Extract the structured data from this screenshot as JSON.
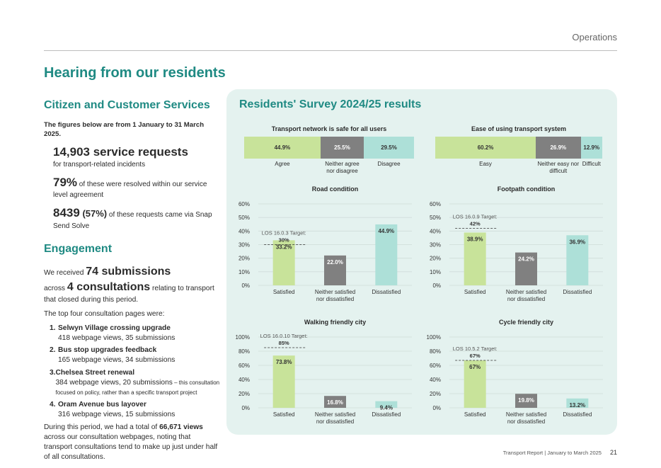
{
  "header": {
    "section": "Operations"
  },
  "page_title": "Hearing from our residents",
  "ccs": {
    "title": "Citizen and Customer Services",
    "intro": "The figures below are from 1 January to 31 March 2025.",
    "stat1_big": "14,903 service requests",
    "stat1_sub": "for transport-related incidents",
    "stat2_big": "79%",
    "stat2_sub": " of these were resolved within our service level agreement",
    "stat3_big": "8439",
    "stat3_mid": " (57%)",
    "stat3_sub": " of these requests came via Snap Send Solve"
  },
  "engagement": {
    "title": "Engagement",
    "line1_pre": "We received ",
    "line1_big": "74 submissions",
    "line2_pre": "across ",
    "line2_big": "4 consultations",
    "line2_post": " relating to transport that closed during this period.",
    "top_intro": "The top four consultation pages were:",
    "pages": [
      {
        "num": "1.",
        "name": "Selwyn Village crossing upgrade",
        "detail": "418 webpage views, 35 submissions",
        "note": ""
      },
      {
        "num": "2.",
        "name": "Bus stop upgrades feedback",
        "detail": "165 webpage views, 34 submissions",
        "note": ""
      },
      {
        "num": "3.",
        "name": "Chelsea Street renewal",
        "detail": "384 webpage views, 20 submissions",
        "note": " – this consultation focused on policy, rather than a specific transport project"
      },
      {
        "num": "4.",
        "name": "Oram Avenue bus layover",
        "detail": "316 webpage views, 15 submissions",
        "note": ""
      }
    ],
    "total_pre": "During this period, we had a total of ",
    "total_big": "66,671 views",
    "total_post": " across our consultation webpages, noting that transport consultations tend to make up just under half of all consultations."
  },
  "survey": {
    "title": "Residents' Survey 2024/25 results",
    "colors": {
      "green": "#c8e39a",
      "grey": "#808080",
      "teal": "#ade0d8"
    },
    "stacked": [
      {
        "title": "Transport network is safe for all users",
        "segments": [
          {
            "value": 44.9,
            "label": "44.9%",
            "cat": "Agree",
            "color": "green"
          },
          {
            "value": 25.5,
            "label": "25.5%",
            "cat": "Neither agree nor disagree",
            "color": "grey"
          },
          {
            "value": 29.5,
            "label": "29.5%",
            "cat": "Disagree",
            "color": "teal"
          }
        ]
      },
      {
        "title": "Ease of using transport system",
        "segments": [
          {
            "value": 60.2,
            "label": "60.2%",
            "cat": "Easy",
            "color": "green"
          },
          {
            "value": 26.9,
            "label": "26.9%",
            "cat": "Neither easy nor difficult",
            "color": "grey"
          },
          {
            "value": 12.9,
            "label": "12.9%",
            "cat": "Difficult",
            "color": "teal"
          }
        ]
      }
    ]
  },
  "chart_data": [
    {
      "type": "bar",
      "title": "Road condition",
      "ylim": [
        0,
        60
      ],
      "yticks": [
        "0%",
        "10%",
        "20%",
        "30%",
        "40%",
        "50%",
        "60%"
      ],
      "categories": [
        "Satisfied",
        "Neither satisfied nor dissatisfied",
        "Dissatisfied"
      ],
      "values": [
        33.2,
        22.0,
        44.9
      ],
      "labels": [
        "33.2%",
        "22.0%",
        "44.9%"
      ],
      "target": {
        "value": 30,
        "label": "LOS 16.0.3 Target:",
        "value_label": "30%"
      }
    },
    {
      "type": "bar",
      "title": "Footpath condition",
      "ylim": [
        0,
        60
      ],
      "yticks": [
        "0%",
        "10%",
        "20%",
        "30%",
        "40%",
        "50%",
        "60%"
      ],
      "categories": [
        "Satisfied",
        "Neither satisfied nor dissatisfied",
        "Dissatisfied"
      ],
      "values": [
        38.9,
        24.2,
        36.9
      ],
      "labels": [
        "38.9%",
        "24.2%",
        "36.9%"
      ],
      "target": {
        "value": 42,
        "label": "LOS 16.0.9 Target:",
        "value_label": "42%"
      }
    },
    {
      "type": "bar",
      "title": "Walking friendly city",
      "ylim": [
        0,
        100
      ],
      "yticks": [
        "0%",
        "20%",
        "40%",
        "60%",
        "80%",
        "100%"
      ],
      "categories": [
        "Satisfied",
        "Neither satisfied nor dissatisfied",
        "Dissatisfied"
      ],
      "values": [
        73.8,
        16.8,
        9.4
      ],
      "labels": [
        "73.8%",
        "16.8%",
        "9.4%"
      ],
      "target": {
        "value": 85,
        "label": "LOS 16.0.10 Target:",
        "value_label": "85%"
      }
    },
    {
      "type": "bar",
      "title": "Cycle friendly city",
      "ylim": [
        0,
        100
      ],
      "yticks": [
        "0%",
        "20%",
        "40%",
        "60%",
        "80%",
        "100%"
      ],
      "categories": [
        "Satisfied",
        "Neither satisfied nor dissatisfied",
        "Dissatisfied"
      ],
      "values": [
        67,
        19.8,
        13.2
      ],
      "labels": [
        "67%",
        "19.8%",
        "13.2%"
      ],
      "target": {
        "value": 67,
        "label": "LOS 10.5.2 Target:",
        "value_label": "67%"
      }
    }
  ],
  "footer": {
    "report": "Transport Report | January to March 2025",
    "page": "21"
  }
}
